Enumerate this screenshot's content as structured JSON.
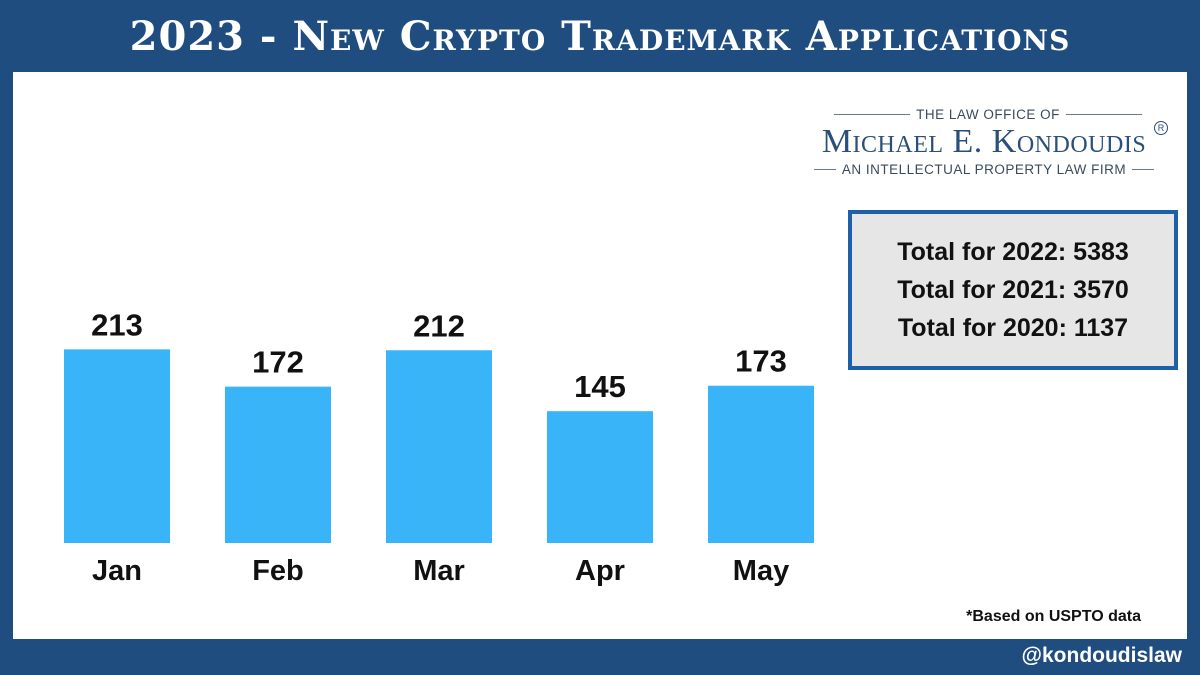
{
  "header": {
    "title": "2023 - New Crypto Trademark Applications"
  },
  "logo": {
    "line1": "THE LAW OFFICE OF",
    "line2": "Michael E. Kondoudis",
    "line3": "AN INTELLECTUAL PROPERTY LAW FIRM",
    "registered": "R"
  },
  "totals": [
    "Total for 2022: 5383",
    "Total for 2021: 3570",
    "Total for 2020: 1137"
  ],
  "source_note": "*Based on USPTO data",
  "footer": {
    "handle": "@kondoudislaw"
  },
  "colors": {
    "background": "#1f4d7f",
    "bar": "#3ab4f8",
    "box_border": "#1d5fa8",
    "box_fill": "#e6e6e6"
  },
  "chart_data": {
    "type": "bar",
    "title": "2023 - New Crypto Trademark Applications",
    "categories": [
      "Jan",
      "Feb",
      "Mar",
      "Apr",
      "May"
    ],
    "values": [
      213,
      172,
      212,
      145,
      173
    ],
    "xlabel": "",
    "ylabel": "",
    "ylim": [
      0,
      275
    ],
    "grid": false,
    "data_labels": true
  }
}
